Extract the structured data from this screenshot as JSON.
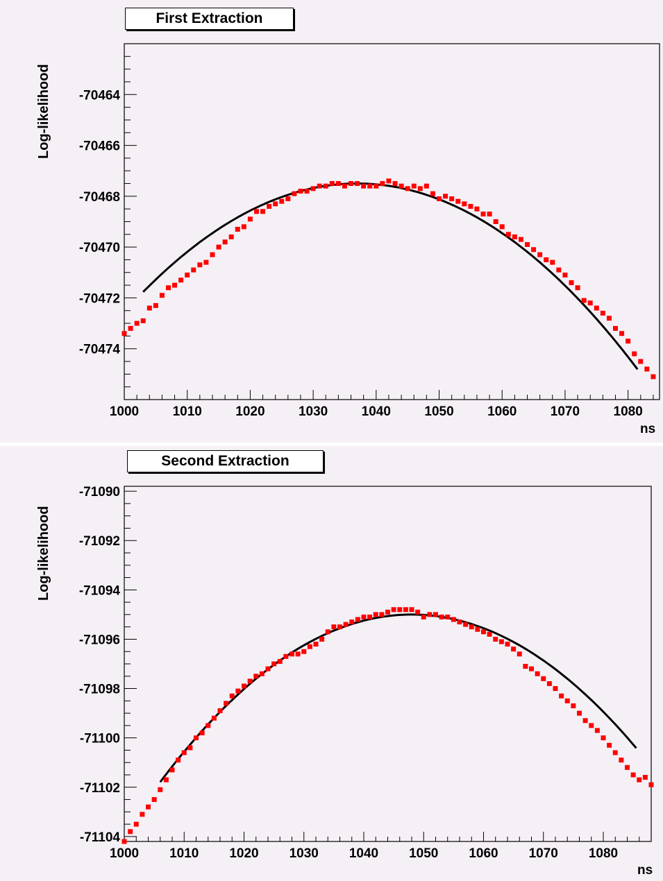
{
  "chart_data": [
    {
      "type": "scatter",
      "title": "First Extraction",
      "xlabel": "ns",
      "ylabel": "Log-likelihood",
      "xlim": [
        1000,
        1085
      ],
      "ylim": [
        -70476,
        -70462
      ],
      "xticks": [
        1000,
        1010,
        1020,
        1030,
        1040,
        1050,
        1060,
        1070,
        1080
      ],
      "yticks": [
        -70464,
        -70466,
        -70468,
        -70470,
        -70472,
        -70474
      ],
      "series": [
        {
          "style": "points",
          "color": "#ff0000",
          "x": [
            1000,
            1001,
            1002,
            1003,
            1004,
            1005,
            1006,
            1007,
            1008,
            1009,
            1010,
            1011,
            1012,
            1013,
            1014,
            1015,
            1016,
            1017,
            1018,
            1019,
            1020,
            1021,
            1022,
            1023,
            1024,
            1025,
            1026,
            1027,
            1028,
            1029,
            1030,
            1031,
            1032,
            1033,
            1034,
            1035,
            1036,
            1037,
            1038,
            1039,
            1040,
            1041,
            1042,
            1043,
            1044,
            1045,
            1046,
            1047,
            1048,
            1049,
            1050,
            1051,
            1052,
            1053,
            1054,
            1055,
            1056,
            1057,
            1058,
            1059,
            1060,
            1061,
            1062,
            1063,
            1064,
            1065,
            1066,
            1067,
            1068,
            1069,
            1070,
            1071,
            1072,
            1073,
            1074,
            1075,
            1076,
            1077,
            1078,
            1079,
            1080,
            1081,
            1082,
            1083,
            1084
          ],
          "y": [
            -70473.4,
            -70473.2,
            -70473.0,
            -70472.9,
            -70472.4,
            -70472.3,
            -70471.9,
            -70471.6,
            -70471.5,
            -70471.3,
            -70471.1,
            -70470.9,
            -70470.7,
            -70470.6,
            -70470.3,
            -70470.0,
            -70469.8,
            -70469.6,
            -70469.3,
            -70469.2,
            -70468.9,
            -70468.6,
            -70468.6,
            -70468.4,
            -70468.3,
            -70468.2,
            -70468.1,
            -70467.9,
            -70467.8,
            -70467.8,
            -70467.7,
            -70467.6,
            -70467.6,
            -70467.5,
            -70467.5,
            -70467.6,
            -70467.5,
            -70467.5,
            -70467.6,
            -70467.6,
            -70467.6,
            -70467.5,
            -70467.4,
            -70467.5,
            -70467.6,
            -70467.7,
            -70467.6,
            -70467.7,
            -70467.6,
            -70467.9,
            -70468.1,
            -70468.0,
            -70468.1,
            -70468.2,
            -70468.3,
            -70468.4,
            -70468.5,
            -70468.7,
            -70468.7,
            -70469.0,
            -70469.2,
            -70469.5,
            -70469.6,
            -70469.7,
            -70469.9,
            -70470.1,
            -70470.3,
            -70470.5,
            -70470.6,
            -70470.9,
            -70471.1,
            -70471.4,
            -70471.6,
            -70472.1,
            -70472.2,
            -70472.4,
            -70472.6,
            -70472.8,
            -70473.2,
            -70473.4,
            -70473.7,
            -70474.2,
            -70474.5,
            -70474.8,
            -70475.1
          ]
        },
        {
          "style": "line",
          "color": "#000000",
          "fit": {
            "peak_x": 1037,
            "peak_y": -70467.5,
            "x_range": [
              1003,
              1081.5
            ],
            "curvature": 0.00369
          }
        }
      ]
    },
    {
      "type": "scatter",
      "title": "Second Extraction",
      "xlabel": "ns",
      "ylabel": "Log-likelihood",
      "xlim": [
        1000,
        1088
      ],
      "ylim": [
        -71104.2,
        -71089.8
      ],
      "xticks": [
        1000,
        1010,
        1020,
        1030,
        1040,
        1050,
        1060,
        1070,
        1080
      ],
      "yticks": [
        -71090,
        -71092,
        -71094,
        -71096,
        -71098,
        -71100,
        -71102,
        -71104
      ],
      "series": [
        {
          "style": "points",
          "color": "#ff0000",
          "x": [
            1000,
            1001,
            1002,
            1003,
            1004,
            1005,
            1006,
            1007,
            1008,
            1009,
            1010,
            1011,
            1012,
            1013,
            1014,
            1015,
            1016,
            1017,
            1018,
            1019,
            1020,
            1021,
            1022,
            1023,
            1024,
            1025,
            1026,
            1027,
            1028,
            1029,
            1030,
            1031,
            1032,
            1033,
            1034,
            1035,
            1036,
            1037,
            1038,
            1039,
            1040,
            1041,
            1042,
            1043,
            1044,
            1045,
            1046,
            1047,
            1048,
            1049,
            1050,
            1051,
            1052,
            1053,
            1054,
            1055,
            1056,
            1057,
            1058,
            1059,
            1060,
            1061,
            1062,
            1063,
            1064,
            1065,
            1066,
            1067,
            1068,
            1069,
            1070,
            1071,
            1072,
            1073,
            1074,
            1075,
            1076,
            1077,
            1078,
            1079,
            1080,
            1081,
            1082,
            1083,
            1084,
            1085,
            1086,
            1087,
            1088
          ],
          "y": [
            -71104.2,
            -71103.8,
            -71103.5,
            -71103.1,
            -71102.8,
            -71102.5,
            -71102.1,
            -71101.7,
            -71101.3,
            -71100.9,
            -71100.6,
            -71100.4,
            -71100.0,
            -71099.8,
            -71099.5,
            -71099.2,
            -71098.9,
            -71098.6,
            -71098.3,
            -71098.1,
            -71097.9,
            -71097.7,
            -71097.5,
            -71097.4,
            -71097.2,
            -71097.0,
            -71096.9,
            -71096.7,
            -71096.6,
            -71096.6,
            -71096.5,
            -71096.3,
            -71096.2,
            -71096.0,
            -71095.7,
            -71095.5,
            -71095.5,
            -71095.4,
            -71095.3,
            -71095.2,
            -71095.1,
            -71095.1,
            -71095.0,
            -71095.0,
            -71094.9,
            -71094.8,
            -71094.8,
            -71094.8,
            -71094.8,
            -71094.9,
            -71095.1,
            -71095.0,
            -71095.0,
            -71095.1,
            -71095.1,
            -71095.2,
            -71095.3,
            -71095.4,
            -71095.5,
            -71095.6,
            -71095.7,
            -71095.8,
            -71096.0,
            -71096.1,
            -71096.2,
            -71096.4,
            -71096.6,
            -71097.1,
            -71097.2,
            -71097.4,
            -71097.6,
            -71097.8,
            -71098.0,
            -71098.3,
            -71098.5,
            -71098.7,
            -71099.0,
            -71099.3,
            -71099.5,
            -71099.7,
            -71100.0,
            -71100.3,
            -71100.6,
            -71100.9,
            -71101.2,
            -71101.5,
            -71101.7,
            -71101.6,
            -71101.9
          ]
        },
        {
          "style": "line",
          "color": "#000000",
          "fit": {
            "peak_x": 1048,
            "peak_y": -71095.0,
            "x_range": [
              1006,
              1085.5
            ],
            "curvature": 0.00385
          }
        }
      ]
    }
  ]
}
